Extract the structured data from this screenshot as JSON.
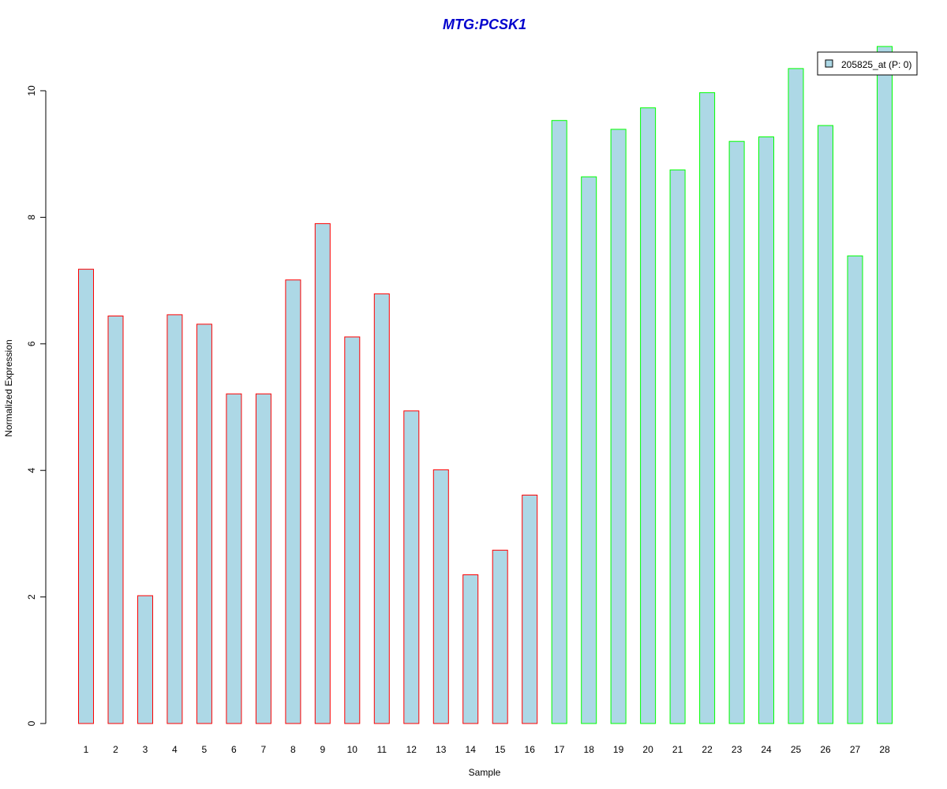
{
  "chart_data": {
    "type": "bar",
    "title": "MTG:PCSK1",
    "xlabel": "Sample",
    "ylabel": "Normalized Expression",
    "categories": [
      "1",
      "2",
      "3",
      "4",
      "5",
      "6",
      "7",
      "8",
      "9",
      "10",
      "11",
      "12",
      "13",
      "14",
      "15",
      "16",
      "17",
      "18",
      "19",
      "20",
      "21",
      "22",
      "23",
      "24",
      "25",
      "26",
      "27",
      "28"
    ],
    "values": [
      7.18,
      6.44,
      2.02,
      6.46,
      6.31,
      5.21,
      5.21,
      7.01,
      7.9,
      6.11,
      6.79,
      4.94,
      4.01,
      2.35,
      2.74,
      3.61,
      9.53,
      8.64,
      9.39,
      9.73,
      8.75,
      9.97,
      9.2,
      9.27,
      10.35,
      9.45,
      7.39,
      10.7
    ],
    "group_colors": [
      "#ff0000",
      "#ff0000",
      "#ff0000",
      "#ff0000",
      "#ff0000",
      "#ff0000",
      "#ff0000",
      "#ff0000",
      "#ff0000",
      "#ff0000",
      "#ff0000",
      "#ff0000",
      "#ff0000",
      "#ff0000",
      "#ff0000",
      "#ff0000",
      "#00ff00",
      "#00ff00",
      "#00ff00",
      "#00ff00",
      "#00ff00",
      "#00ff00",
      "#00ff00",
      "#00ff00",
      "#00ff00",
      "#00ff00",
      "#00ff00",
      "#00ff00"
    ],
    "fill_color": "#add8e6",
    "title_color": "#0000cd",
    "ylim": [
      0,
      10.7
    ],
    "yticks": [
      0,
      2,
      4,
      6,
      8,
      10
    ],
    "grid": false,
    "legend": {
      "position": "top-right",
      "entries": [
        {
          "label": "205825_at (P: 0)",
          "color": "#add8e6"
        }
      ]
    }
  }
}
